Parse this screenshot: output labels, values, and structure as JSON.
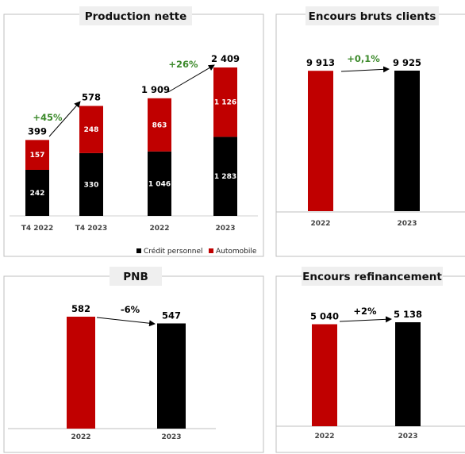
{
  "colors": {
    "red": "#c00000",
    "black": "#000000",
    "green": "#3d8a2c"
  },
  "chart_data": [
    {
      "type": "bar",
      "stacked": true,
      "title": "Production nette",
      "categories": [
        "T4 2022",
        "T4 2023",
        "2022",
        "2023"
      ],
      "series": [
        {
          "name": "Crédit personnel",
          "values": [
            242,
            330,
            1046,
            1283
          ],
          "labels": [
            "242",
            "330",
            "1 046",
            "1 283"
          ]
        },
        {
          "name": "Automobile",
          "values": [
            157,
            248,
            863,
            1126
          ],
          "labels": [
            "157",
            "248",
            "863",
            "1 126"
          ]
        }
      ],
      "totals": [
        "399",
        "578",
        "1 909",
        "2 409"
      ],
      "annotations": [
        {
          "text": "+45%",
          "from": 0,
          "to": 1
        },
        {
          "text": "+26%",
          "from": 2,
          "to": 3
        }
      ],
      "legend": "bottom-right"
    },
    {
      "type": "bar",
      "title": "Encours bruts clients",
      "categories": [
        "2022",
        "2023"
      ],
      "values": [
        9913,
        9925
      ],
      "labels": [
        "9 913",
        "9 925"
      ],
      "annotation": "+0,1%"
    },
    {
      "type": "bar",
      "title": "PNB",
      "categories": [
        "2022",
        "2023"
      ],
      "values": [
        582,
        547
      ],
      "labels": [
        "582",
        "547"
      ],
      "annotation": "-6%"
    },
    {
      "type": "bar",
      "title": "Encours refinancement",
      "categories": [
        "2022",
        "2023"
      ],
      "values": [
        5040,
        5138
      ],
      "labels": [
        "5 040",
        "5 138"
      ],
      "annotation": "+2%"
    }
  ]
}
